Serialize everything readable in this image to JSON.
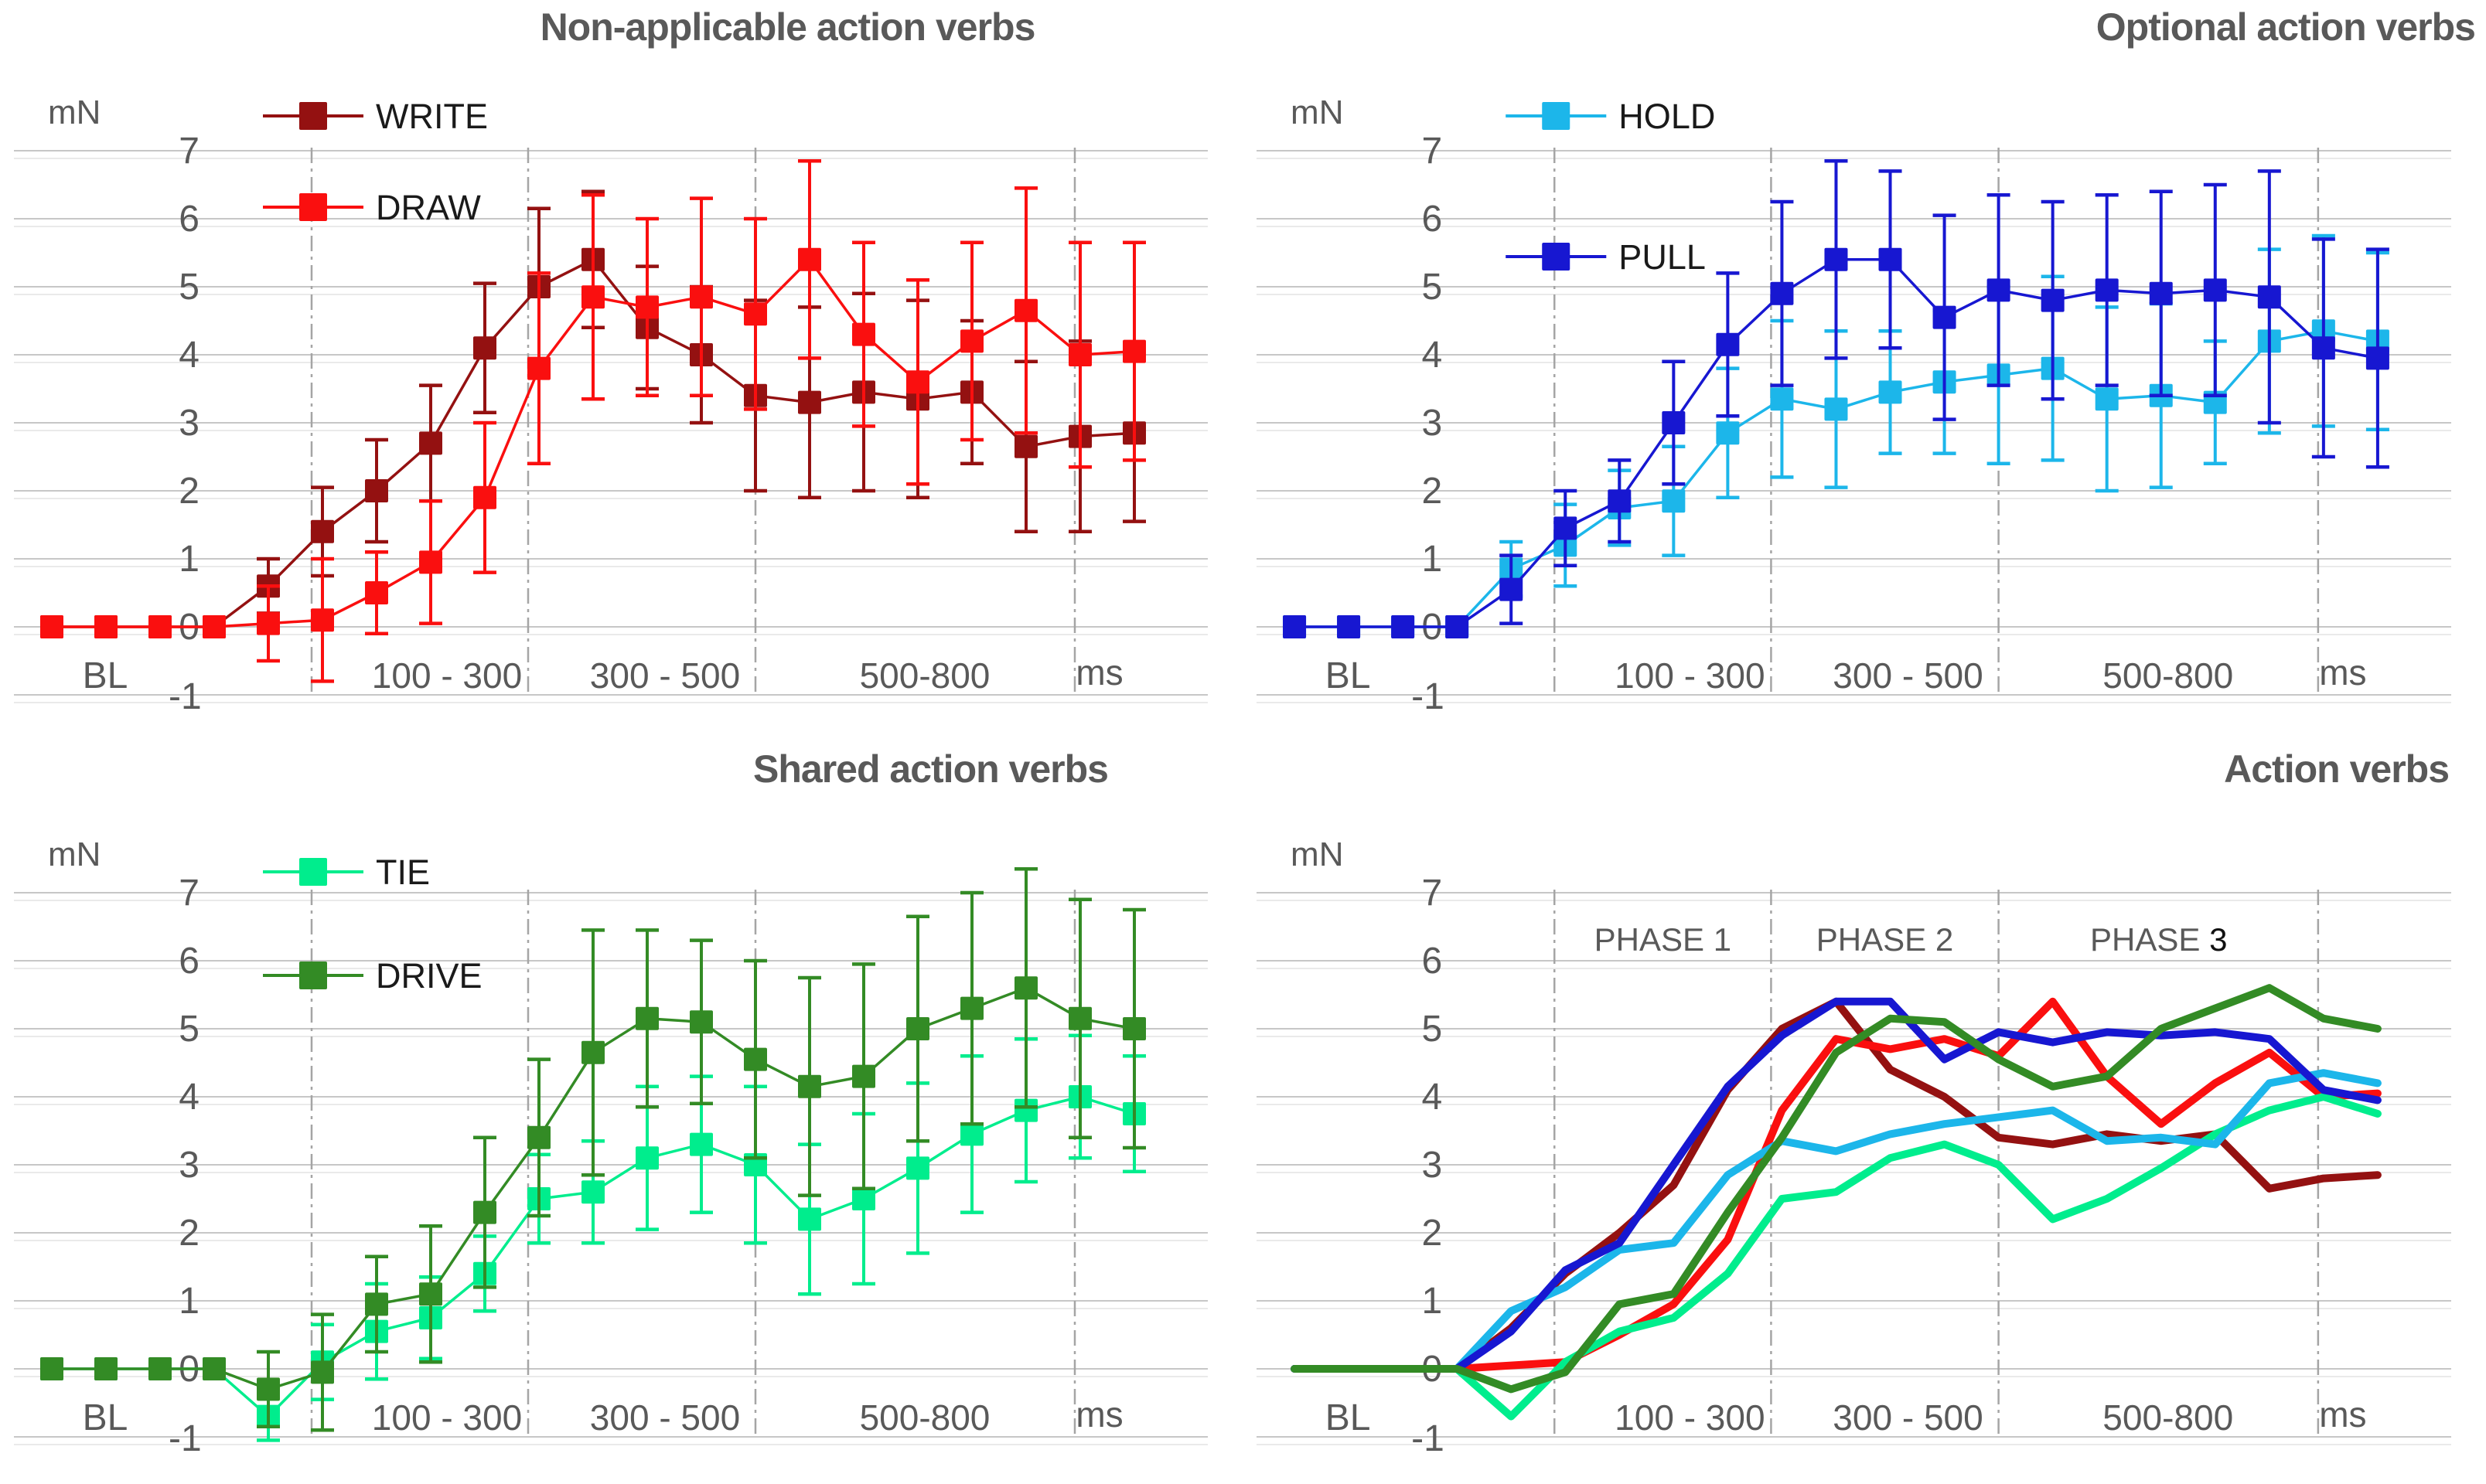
{
  "figure": {
    "text_gray": "#595959",
    "grid_color": "#c7c7c7",
    "grid_echo_color": "#e3e3e3",
    "phase_line_color": "#a5a5a5",
    "background": "#ffffff"
  },
  "chart_data": [
    {
      "type": "line",
      "title": "Non-applicable action verbs",
      "ylabel": "mN",
      "xlabel_unit": "ms",
      "ylim": [
        -1,
        7
      ],
      "y_ticks": [
        7,
        6,
        5,
        4,
        3,
        2,
        1,
        0,
        -1
      ],
      "x_baseline_label": "BL",
      "x_minus_one_label": "-1",
      "x_range_labels": [
        "100 - 300",
        "300 - 500",
        "500-800"
      ],
      "phase_boundaries_idx": [
        4.8,
        8.8,
        13.0,
        18.9
      ],
      "grid": true,
      "markers": true,
      "error_bars": true,
      "legend_position": "top-left-inside",
      "series": [
        {
          "name": "WRITE",
          "color": "#941111",
          "values": [
            0,
            0,
            0,
            0,
            0.6,
            1.4,
            2.0,
            2.7,
            4.1,
            5.0,
            5.4,
            4.4,
            4.0,
            3.4,
            3.3,
            3.45,
            3.35,
            3.45,
            2.65,
            2.8,
            2.85
          ],
          "err": [
            0,
            0,
            0,
            0,
            0.4,
            0.65,
            0.75,
            0.85,
            0.95,
            1.15,
            1.0,
            0.9,
            1.0,
            1.4,
            1.4,
            1.45,
            1.45,
            1.05,
            1.25,
            1.4,
            1.3
          ]
        },
        {
          "name": "DRAW",
          "color": "#fa0f0f",
          "values": [
            0,
            0,
            0,
            0,
            0.05,
            0.1,
            0.5,
            0.95,
            1.9,
            3.8,
            4.85,
            4.7,
            4.85,
            4.6,
            5.4,
            4.3,
            3.6,
            4.2,
            4.65,
            4.0,
            4.05
          ],
          "err": [
            0,
            0,
            0,
            0,
            0.55,
            0.9,
            0.6,
            0.9,
            1.1,
            1.4,
            1.5,
            1.3,
            1.45,
            1.4,
            1.45,
            1.35,
            1.5,
            1.45,
            1.8,
            1.65,
            1.6
          ]
        }
      ]
    },
    {
      "type": "line",
      "title": "Optional action verbs",
      "ylabel": "mN",
      "xlabel_unit": "ms",
      "ylim": [
        -1,
        7
      ],
      "y_ticks": [
        7,
        6,
        5,
        4,
        3,
        2,
        1,
        0,
        -1
      ],
      "x_baseline_label": "BL",
      "x_minus_one_label": "-1",
      "x_range_labels": [
        "100 - 300",
        "300 - 500",
        "500-800"
      ],
      "phase_boundaries_idx": [
        4.8,
        8.8,
        13.0,
        18.9
      ],
      "grid": true,
      "markers": true,
      "error_bars": true,
      "legend_position": "top-left-inside",
      "series": [
        {
          "name": "HOLD",
          "color": "#1cb6ea",
          "values": [
            0,
            0,
            0,
            0,
            0.85,
            1.2,
            1.75,
            1.85,
            2.85,
            3.35,
            3.2,
            3.45,
            3.6,
            3.7,
            3.8,
            3.35,
            3.4,
            3.3,
            4.2,
            4.35,
            4.2
          ],
          "err": [
            0,
            0,
            0,
            0,
            0.4,
            0.6,
            0.55,
            0.8,
            0.95,
            1.15,
            1.15,
            0.9,
            1.05,
            1.3,
            1.35,
            1.35,
            1.35,
            0.9,
            1.35,
            1.4,
            1.3
          ]
        },
        {
          "name": "PULL",
          "color": "#1717d1",
          "values": [
            0,
            0,
            0,
            0,
            0.55,
            1.45,
            1.85,
            3.0,
            4.15,
            4.9,
            5.4,
            5.4,
            4.55,
            4.95,
            4.8,
            4.95,
            4.9,
            4.95,
            4.85,
            4.1,
            3.95
          ],
          "err": [
            0,
            0,
            0,
            0,
            0.5,
            0.55,
            0.6,
            0.9,
            1.05,
            1.35,
            1.45,
            1.3,
            1.5,
            1.4,
            1.45,
            1.4,
            1.5,
            1.55,
            1.85,
            1.6,
            1.6
          ]
        }
      ]
    },
    {
      "type": "line",
      "title": "Shared action verbs",
      "ylabel": "mN",
      "xlabel_unit": "ms",
      "ylim": [
        -1,
        7
      ],
      "y_ticks": [
        7,
        6,
        5,
        4,
        3,
        2,
        1,
        0,
        -1
      ],
      "x_baseline_label": "BL",
      "x_minus_one_label": "-1",
      "x_range_labels": [
        "100 - 300",
        "300 - 500",
        "500-800"
      ],
      "phase_boundaries_idx": [
        4.8,
        8.8,
        13.0,
        18.9
      ],
      "grid": true,
      "markers": true,
      "error_bars": true,
      "legend_position": "top-left-inside",
      "series": [
        {
          "name": "TIE",
          "color": "#00ed8d",
          "values": [
            0,
            0,
            0,
            0,
            -0.7,
            0.1,
            0.55,
            0.75,
            1.4,
            2.5,
            2.6,
            3.1,
            3.3,
            3.0,
            2.2,
            2.5,
            2.95,
            3.45,
            3.8,
            4.0,
            3.75
          ],
          "err": [
            0,
            0,
            0,
            0,
            0.35,
            0.55,
            0.7,
            0.6,
            0.55,
            0.65,
            0.75,
            1.05,
            1.0,
            1.15,
            1.1,
            1.25,
            1.25,
            1.15,
            1.05,
            0.9,
            0.85
          ]
        },
        {
          "name": "DRIVE",
          "color": "#338b25",
          "values": [
            0,
            0,
            0,
            0,
            -0.3,
            -0.05,
            0.95,
            1.1,
            2.3,
            3.4,
            4.65,
            5.15,
            5.1,
            4.55,
            4.15,
            4.3,
            5.0,
            5.3,
            5.6,
            5.15,
            5.0
          ],
          "err": [
            0,
            0,
            0,
            0,
            0.55,
            0.85,
            0.7,
            1.0,
            1.1,
            1.15,
            1.8,
            1.3,
            1.2,
            1.45,
            1.6,
            1.65,
            1.65,
            1.7,
            1.75,
            1.75,
            1.75
          ]
        }
      ]
    },
    {
      "type": "line",
      "title": "Action verbs",
      "ylabel": "mN",
      "xlabel_unit": "ms",
      "ylim": [
        -1,
        7
      ],
      "y_ticks": [
        7,
        6,
        5,
        4,
        3,
        2,
        1,
        0,
        -1
      ],
      "x_baseline_label": "BL",
      "x_minus_one_label": "-1",
      "x_range_labels": [
        "100 - 300",
        "300 - 500",
        "500-800"
      ],
      "phase_boundaries_idx": [
        4.8,
        8.8,
        13.0,
        18.9
      ],
      "grid": true,
      "markers": false,
      "error_bars": false,
      "phases": [
        {
          "label": "PHASE 1",
          "accent_last_char": false
        },
        {
          "label": "PHASE 2",
          "accent_last_char": false
        },
        {
          "label": "PHASE 3",
          "accent_last_char": true
        }
      ],
      "phase_accent_color": "#111111",
      "series": [
        {
          "name": "WRITE",
          "color": "#941111",
          "values": [
            0,
            0,
            0,
            0,
            0.6,
            1.4,
            2.0,
            2.7,
            4.1,
            5.0,
            5.4,
            4.4,
            4.0,
            3.4,
            3.3,
            3.45,
            3.35,
            3.45,
            2.65,
            2.8,
            2.85
          ]
        },
        {
          "name": "DRAW",
          "color": "#fa0f0f",
          "values": [
            0,
            0,
            0,
            0,
            0.05,
            0.1,
            0.5,
            0.95,
            1.9,
            3.8,
            4.85,
            4.7,
            4.85,
            4.6,
            5.4,
            4.3,
            3.6,
            4.2,
            4.65,
            4.0,
            4.05
          ]
        },
        {
          "name": "TIE",
          "color": "#00ed8d",
          "values": [
            0,
            0,
            0,
            0,
            -0.7,
            0.1,
            0.55,
            0.75,
            1.4,
            2.5,
            2.6,
            3.1,
            3.3,
            3.0,
            2.2,
            2.5,
            2.95,
            3.45,
            3.8,
            4.0,
            3.75
          ]
        },
        {
          "name": "HOLD",
          "color": "#1cb6ea",
          "values": [
            0,
            0,
            0,
            0,
            0.85,
            1.2,
            1.75,
            1.85,
            2.85,
            3.35,
            3.2,
            3.45,
            3.6,
            3.7,
            3.8,
            3.35,
            3.4,
            3.3,
            4.2,
            4.35,
            4.2
          ]
        },
        {
          "name": "PULL",
          "color": "#1717d1",
          "values": [
            0,
            0,
            0,
            0,
            0.55,
            1.45,
            1.85,
            3.0,
            4.15,
            4.9,
            5.4,
            5.4,
            4.55,
            4.95,
            4.8,
            4.95,
            4.9,
            4.95,
            4.85,
            4.1,
            3.95
          ]
        },
        {
          "name": "DRIVE",
          "color": "#338b25",
          "values": [
            0,
            0,
            0,
            0,
            -0.3,
            -0.05,
            0.95,
            1.1,
            2.3,
            3.4,
            4.65,
            5.15,
            5.1,
            4.55,
            4.15,
            4.3,
            5.0,
            5.3,
            5.6,
            5.15,
            5.0
          ]
        }
      ]
    }
  ]
}
